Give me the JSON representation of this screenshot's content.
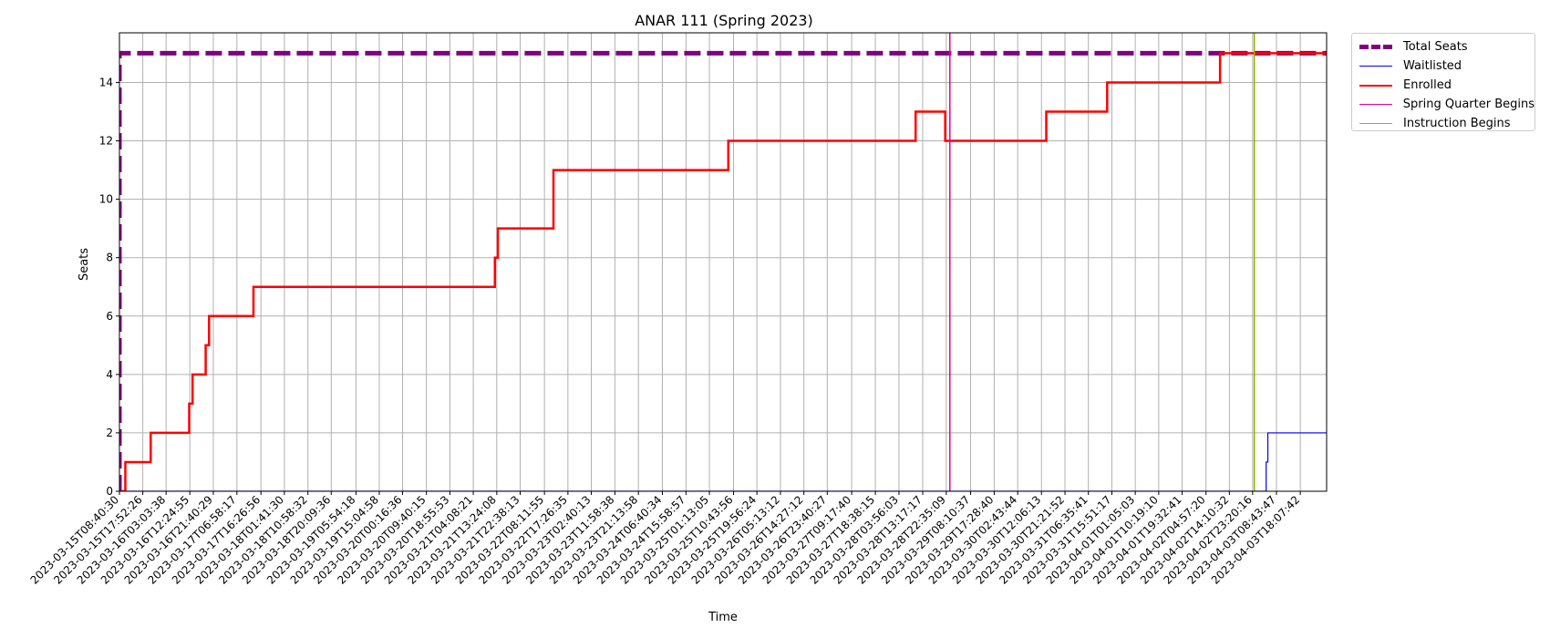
{
  "chart_data": {
    "type": "line",
    "title": "ANAR 111 (Spring 2023)",
    "xlabel": "Time",
    "ylabel": "Seats",
    "ylim": [
      0,
      15.7
    ],
    "yticks": [
      0,
      2,
      4,
      6,
      8,
      10,
      12,
      14
    ],
    "grid": true,
    "legend_placement": "outside-top-right",
    "xticks": [
      "2023-03-15T08:40:30",
      "2023-03-15T17:52:26",
      "2023-03-16T03:03:38",
      "2023-03-16T12:24:55",
      "2023-03-16T21:40:29",
      "2023-03-17T06:58:17",
      "2023-03-17T16:26:56",
      "2023-03-18T01:41:30",
      "2023-03-18T10:58:32",
      "2023-03-18T20:09:36",
      "2023-03-19T05:54:18",
      "2023-03-19T15:04:58",
      "2023-03-20T00:16:36",
      "2023-03-20T09:40:15",
      "2023-03-20T18:55:53",
      "2023-03-21T04:08:21",
      "2023-03-21T13:24:08",
      "2023-03-21T22:38:13",
      "2023-03-22T08:11:55",
      "2023-03-22T17:26:35",
      "2023-03-23T02:40:13",
      "2023-03-23T11:58:38",
      "2023-03-23T21:13:58",
      "2023-03-24T06:40:34",
      "2023-03-24T15:58:57",
      "2023-03-25T01:13:05",
      "2023-03-25T10:43:56",
      "2023-03-25T19:56:24",
      "2023-03-26T05:13:12",
      "2023-03-26T14:27:12",
      "2023-03-26T23:40:27",
      "2023-03-27T09:17:40",
      "2023-03-27T18:38:15",
      "2023-03-28T03:56:03",
      "2023-03-28T13:17:17",
      "2023-03-28T22:35:09",
      "2023-03-29T08:10:37",
      "2023-03-29T17:28:40",
      "2023-03-30T02:43:44",
      "2023-03-30T12:06:13",
      "2023-03-30T21:21:52",
      "2023-03-31T06:35:41",
      "2023-03-31T15:51:17",
      "2023-04-01T01:05:03",
      "2023-04-01T10:19:10",
      "2023-04-01T19:32:41",
      "2023-04-02T04:57:20",
      "2023-04-02T14:10:32",
      "2023-04-02T23:20:16",
      "2023-04-03T08:43:47",
      "2023-04-03T18:07:42"
    ],
    "xdomain": [
      "2023-03-15T08:40:30",
      "2023-04-04T04:30:00"
    ],
    "series": [
      {
        "name": "Total Seats",
        "color": "#800080",
        "style": "dashed-thick",
        "points": [
          [
            "2023-03-15T08:40:30",
            0
          ],
          [
            "2023-03-15T08:40:30",
            15
          ],
          [
            "2023-04-04T04:30:00",
            15
          ]
        ]
      },
      {
        "name": "Waitlisted",
        "color": "#0000ff",
        "style": "thin",
        "points": [
          [
            "2023-03-15T08:40:30",
            0
          ],
          [
            "2023-04-03T04:40:00",
            0
          ],
          [
            "2023-04-03T04:40:00",
            1
          ],
          [
            "2023-04-03T05:20:00",
            1
          ],
          [
            "2023-04-03T05:20:00",
            2
          ],
          [
            "2023-04-04T04:30:00",
            2
          ]
        ]
      },
      {
        "name": "Enrolled",
        "color": "#ff0000",
        "style": "thick",
        "points": [
          [
            "2023-03-15T08:40:30",
            0
          ],
          [
            "2023-03-15T11:00:00",
            0
          ],
          [
            "2023-03-15T11:00:00",
            1
          ],
          [
            "2023-03-15T21:00:00",
            1
          ],
          [
            "2023-03-15T21:00:00",
            2
          ],
          [
            "2023-03-16T12:10:00",
            2
          ],
          [
            "2023-03-16T12:10:00",
            3
          ],
          [
            "2023-03-16T13:30:00",
            3
          ],
          [
            "2023-03-16T13:30:00",
            4
          ],
          [
            "2023-03-16T18:40:00",
            4
          ],
          [
            "2023-03-16T18:40:00",
            5
          ],
          [
            "2023-03-16T20:00:00",
            5
          ],
          [
            "2023-03-16T20:00:00",
            6
          ],
          [
            "2023-03-17T13:30:00",
            6
          ],
          [
            "2023-03-17T13:30:00",
            7
          ],
          [
            "2023-03-21T12:40:00",
            7
          ],
          [
            "2023-03-21T12:40:00",
            8
          ],
          [
            "2023-03-21T13:50:00",
            8
          ],
          [
            "2023-03-21T13:50:00",
            9
          ],
          [
            "2023-03-22T11:45:00",
            9
          ],
          [
            "2023-03-22T11:45:00",
            11
          ],
          [
            "2023-03-25T08:40:00",
            11
          ],
          [
            "2023-03-25T08:40:00",
            12
          ],
          [
            "2023-03-28T10:30:00",
            12
          ],
          [
            "2023-03-28T10:30:00",
            13
          ],
          [
            "2023-03-28T22:10:00",
            13
          ],
          [
            "2023-03-28T22:10:00",
            12
          ],
          [
            "2023-03-30T14:00:00",
            12
          ],
          [
            "2023-03-30T14:00:00",
            13
          ],
          [
            "2023-03-31T14:00:00",
            13
          ],
          [
            "2023-03-31T14:00:00",
            14
          ],
          [
            "2023-04-02T10:30:00",
            14
          ],
          [
            "2023-04-02T10:30:00",
            15
          ],
          [
            "2023-04-04T04:30:00",
            15
          ]
        ]
      }
    ],
    "vlines": [
      {
        "name": "Spring Quarter Begins",
        "color": "#e0009a",
        "x": "2023-03-29T00:00:00"
      },
      {
        "name": "Instruction Begins",
        "color": "#8db600",
        "x": "2023-04-03T00:00:00"
      }
    ]
  }
}
